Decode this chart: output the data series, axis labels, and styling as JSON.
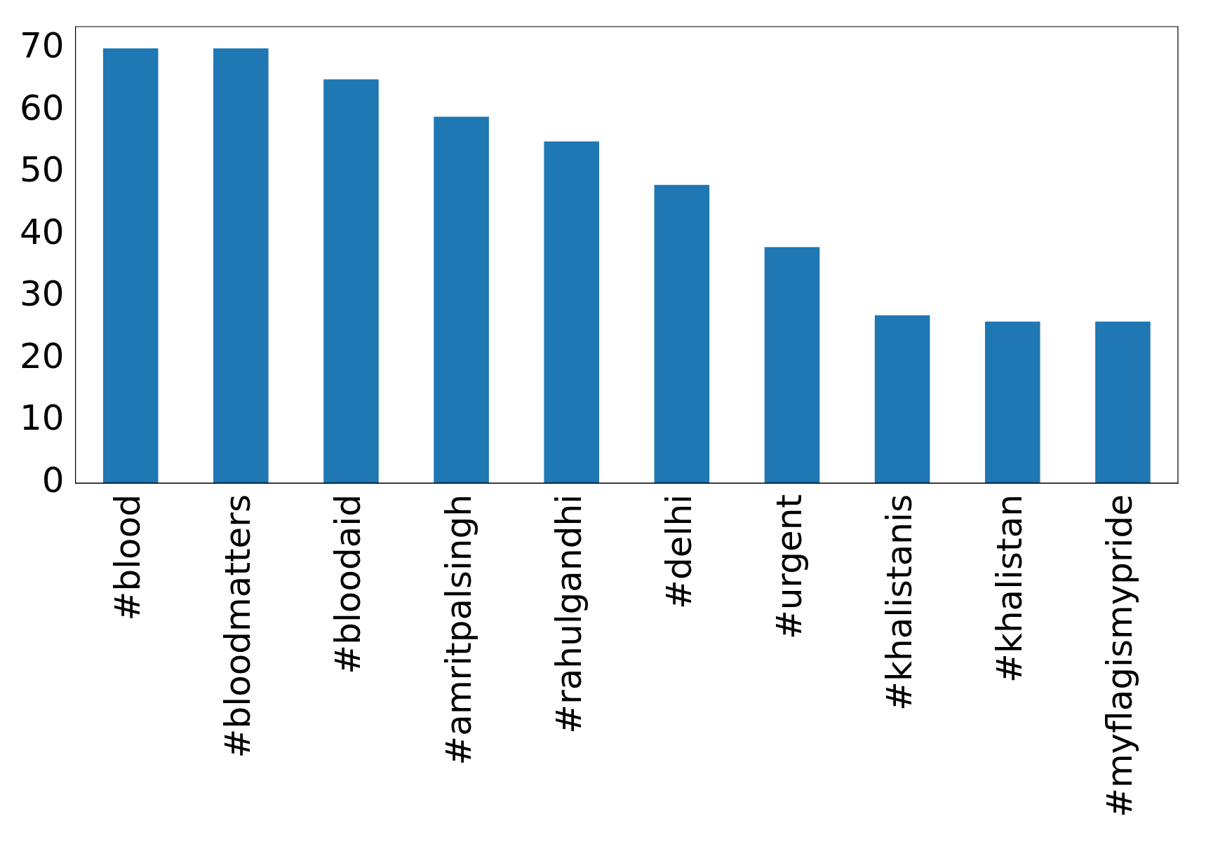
{
  "chart_data": {
    "type": "bar",
    "categories": [
      "#blood",
      "#bloodmatters",
      "#bloodaid",
      "#amritpalsingh",
      "#rahulgandhi",
      "#delhi",
      "#urgent",
      "#khalistanis",
      "#khalistan",
      "#myflagismypride"
    ],
    "values": [
      70,
      70,
      65,
      59,
      55,
      48,
      38,
      27,
      26,
      26
    ],
    "color": "#1f77b4",
    "ylim": [
      0,
      73.5
    ],
    "yticks": [
      0,
      10,
      20,
      30,
      40,
      50,
      60,
      70
    ],
    "grid": false,
    "legend": false
  }
}
